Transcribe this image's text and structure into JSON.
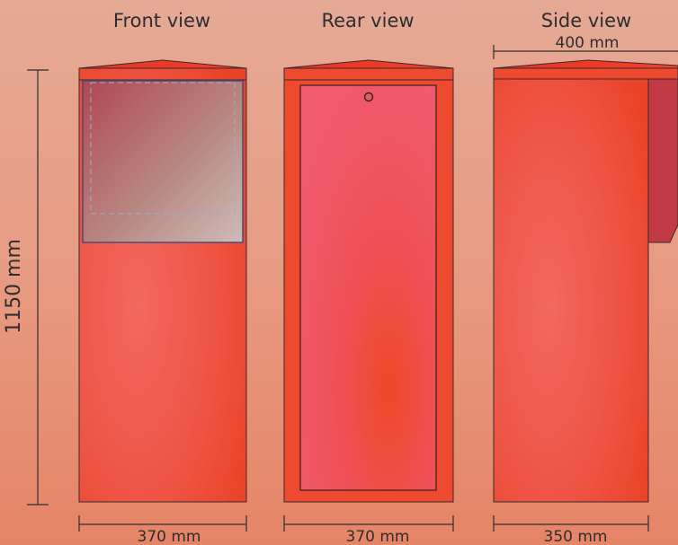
{
  "views": {
    "front": {
      "title": "Front view",
      "width_label": "370 mm"
    },
    "rear": {
      "title": "Rear view",
      "width_label": "370 mm"
    },
    "side": {
      "title": "Side view",
      "width_label": "350 mm",
      "depth_label": "400 mm"
    }
  },
  "height_label": "1150 mm",
  "colors": {
    "body": "#ee4a34",
    "panel": "#ee5a66",
    "glass_dark": "#b04a52",
    "glass_light": "#c8b4b0",
    "side_flap": "#c23a42"
  }
}
